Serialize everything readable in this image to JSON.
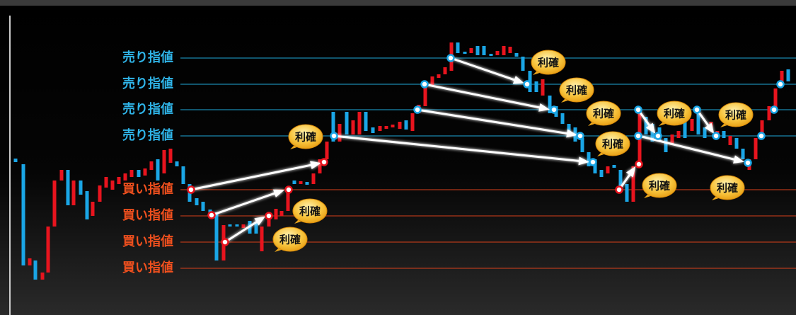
{
  "sell_limit_labels": [
    "売り指値",
    "売り指値",
    "売り指値",
    "売り指値"
  ],
  "buy_limit_labels": [
    "買い指値",
    "買い指値",
    "買い指値",
    "買い指値"
  ],
  "take_profit_labels": [
    "利確",
    "利確",
    "利確",
    "利確",
    "利確",
    "利確",
    "利確",
    "利確",
    "利確",
    "利確",
    "利確"
  ]
}
